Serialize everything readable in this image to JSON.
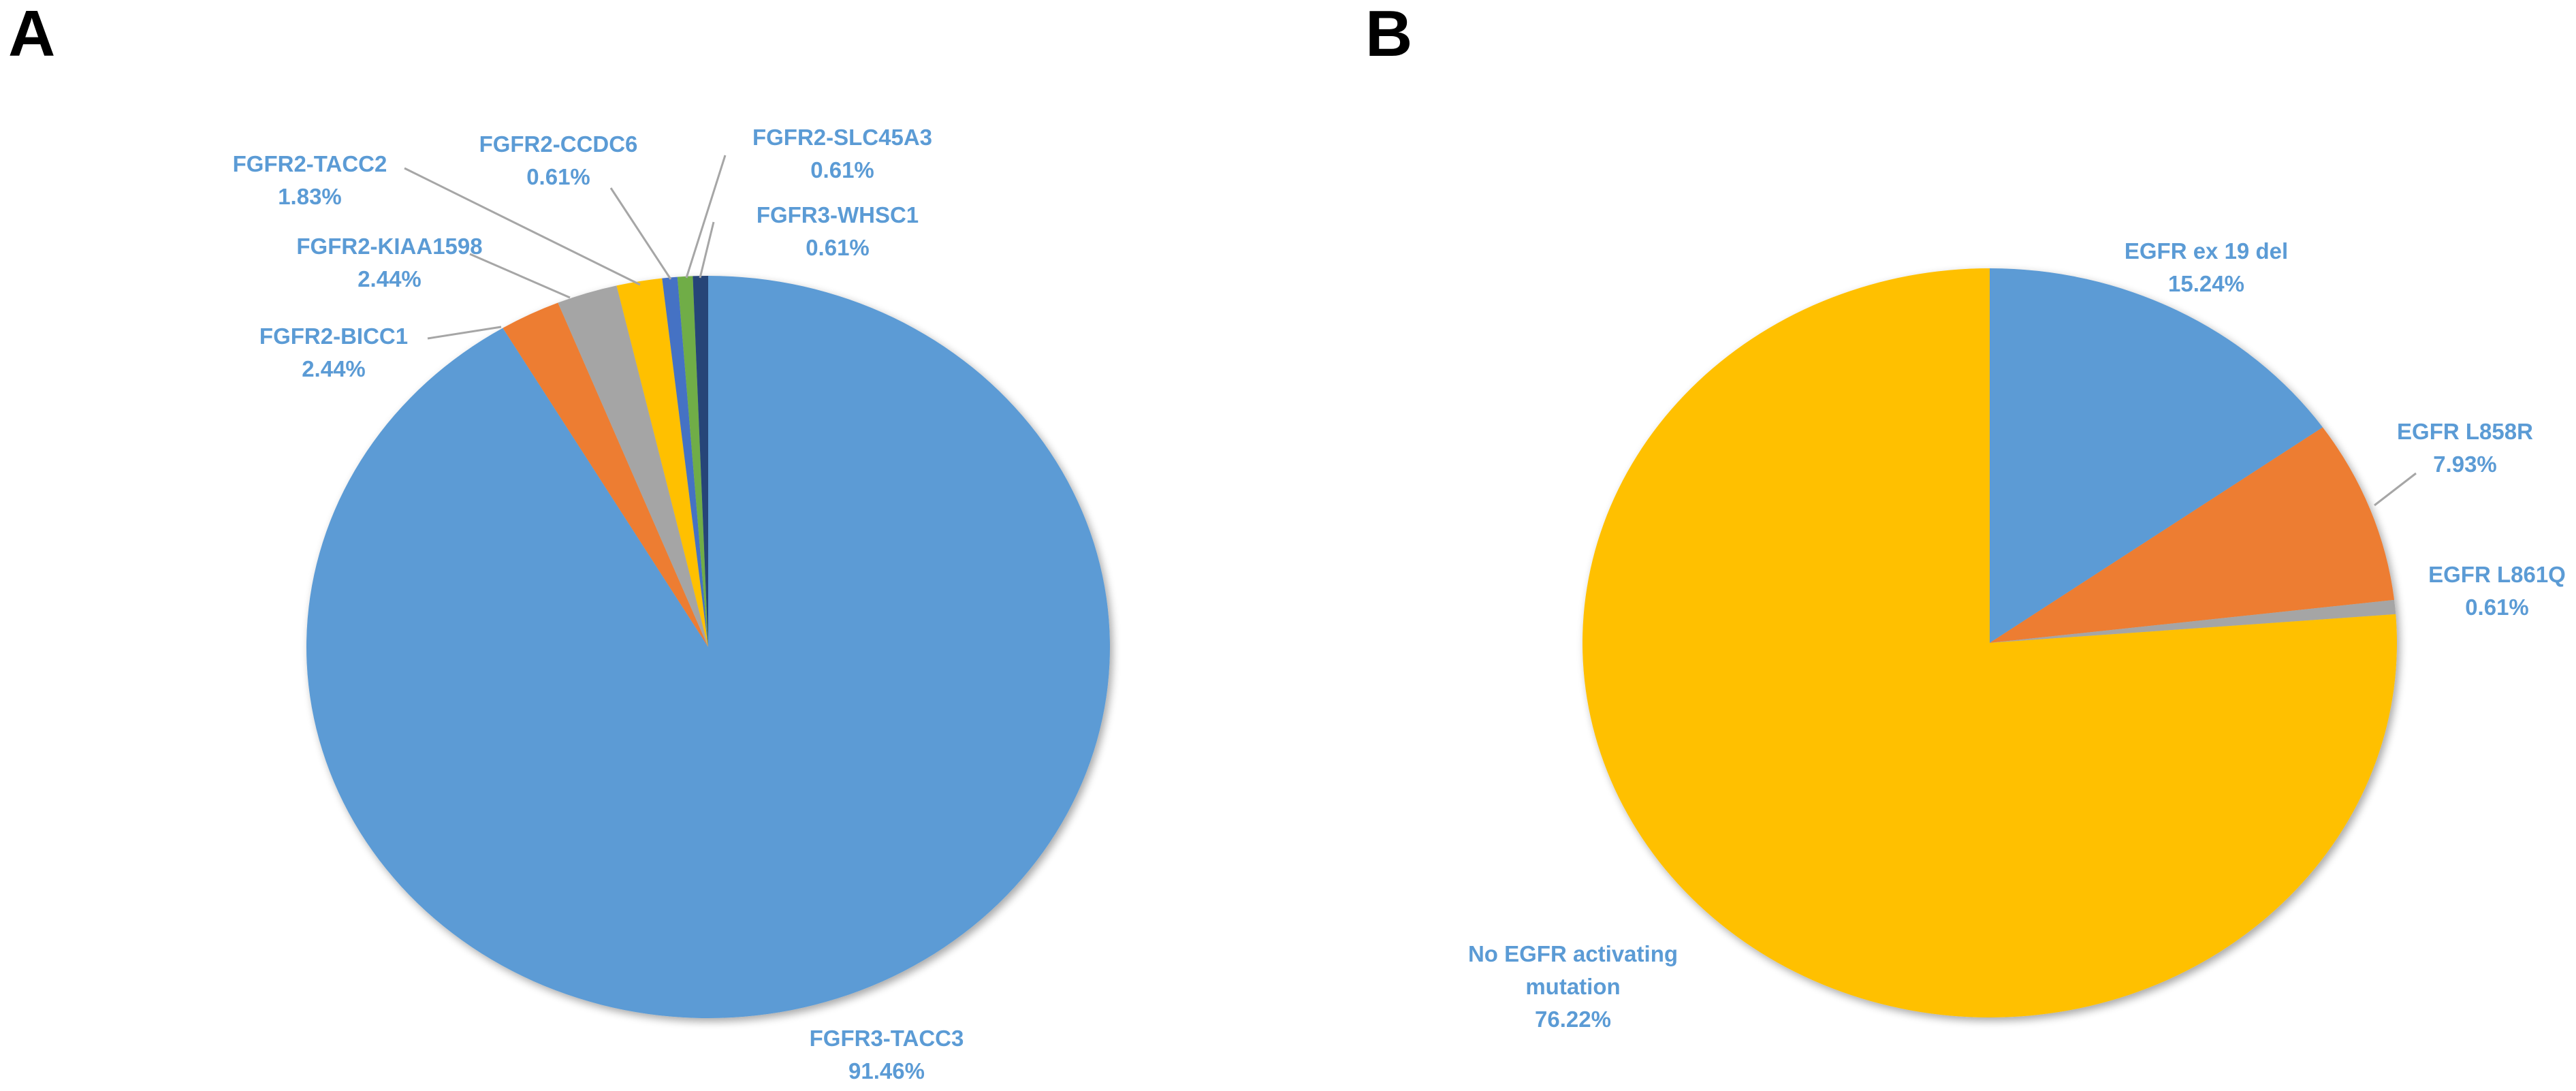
{
  "panels": [
    {
      "letter": "A"
    },
    {
      "letter": "B"
    }
  ],
  "chart_data": [
    {
      "type": "pie",
      "panel": "A",
      "slices": [
        {
          "label": "FGFR3-TACC3",
          "value": 91.46,
          "text": "91.46%",
          "color": "#5b9bd5"
        },
        {
          "label": "FGFR2-BICC1",
          "value": 2.44,
          "text": "2.44%",
          "color": "#ed7d31"
        },
        {
          "label": "FGFR2-KIAA1598",
          "value": 2.44,
          "text": "2.44%",
          "color": "#a5a5a5"
        },
        {
          "label": "FGFR2-TACC2",
          "value": 1.83,
          "text": "1.83%",
          "color": "#ffc000"
        },
        {
          "label": "FGFR2-CCDC6",
          "value": 0.61,
          "text": "0.61%",
          "color": "#4472c4"
        },
        {
          "label": "FGFR2-SLC45A3",
          "value": 0.61,
          "text": "0.61%",
          "color": "#70ad47"
        },
        {
          "label": "FGFR3-WHSC1",
          "value": 0.61,
          "text": "0.61%",
          "color": "#264478"
        }
      ]
    },
    {
      "type": "pie",
      "panel": "B",
      "slices": [
        {
          "label": "EGFR ex 19 del",
          "value": 15.24,
          "text": "15.24%",
          "color": "#5b9bd5"
        },
        {
          "label": "EGFR L858R",
          "value": 7.93,
          "text": "7.93%",
          "color": "#ed7d31"
        },
        {
          "label": "EGFR L861Q",
          "value": 0.61,
          "text": "0.61%",
          "color": "#a5a5a5"
        },
        {
          "label": "No EGFR activating mutation",
          "label_lines": [
            "No EGFR activating",
            "mutation"
          ],
          "value": 76.22,
          "text": "76.22%",
          "color": "#ffc000"
        }
      ]
    }
  ]
}
